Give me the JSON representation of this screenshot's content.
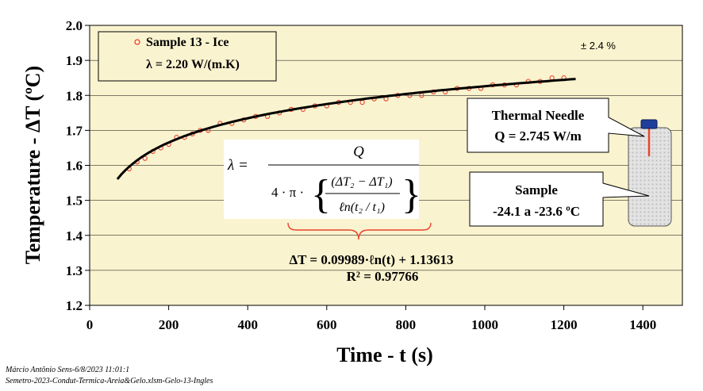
{
  "chart_data": {
    "type": "scatter",
    "title": "",
    "xlabel": "Time - t (s)",
    "ylabel": "Temperature - ΔT (ºC)",
    "xlim": [
      0,
      1500
    ],
    "ylim": [
      1.2,
      2.0
    ],
    "xticks": [
      0,
      200,
      400,
      600,
      800,
      1000,
      1200,
      1400
    ],
    "yticks": [
      "1.2",
      "1.3",
      "1.4",
      "1.5",
      "1.6",
      "1.7",
      "1.8",
      "1.9",
      "2.0"
    ],
    "grid": "horizontal",
    "series": [
      {
        "name": "Sample 13 - Ice",
        "kind": "points",
        "color": "#e8452c",
        "x": [
          100,
          120,
          140,
          160,
          180,
          200,
          220,
          240,
          260,
          280,
          300,
          330,
          360,
          390,
          420,
          450,
          480,
          510,
          540,
          570,
          600,
          630,
          660,
          690,
          720,
          750,
          780,
          810,
          840,
          870,
          900,
          930,
          960,
          990,
          1020,
          1050,
          1080,
          1110,
          1140,
          1170,
          1200
        ],
        "y": [
          1.59,
          1.61,
          1.62,
          1.64,
          1.65,
          1.66,
          1.68,
          1.68,
          1.69,
          1.7,
          1.7,
          1.72,
          1.72,
          1.73,
          1.74,
          1.74,
          1.75,
          1.76,
          1.76,
          1.77,
          1.77,
          1.78,
          1.78,
          1.78,
          1.79,
          1.79,
          1.8,
          1.8,
          1.8,
          1.81,
          1.81,
          1.82,
          1.82,
          1.82,
          1.83,
          1.83,
          1.83,
          1.84,
          1.84,
          1.85,
          1.85
        ]
      },
      {
        "name": "ΔT = 0.09989·ℓn(t) + 1.13613",
        "kind": "fit",
        "color": "#000000",
        "fit": {
          "a": 0.09989,
          "b": 1.13613,
          "x_from": 70,
          "x_to": 1230
        }
      }
    ]
  },
  "legend": {
    "marker_label": "Sample 13 - Ice",
    "lambda_text": "λ = 2.20 W/(m.K)"
  },
  "uncertainty": "± 2.4 %",
  "formula": {
    "lambda": "λ =",
    "numerator": "Q",
    "prefix": "4 · π ·",
    "inner_num": "(ΔT₂ − ΔT₁)",
    "inner_den": "ℓn(t₂ / t₁)"
  },
  "fit_equation": "ΔT = 0.09989·ℓn(t) + 1.13613",
  "r_squared": "R² = 0.97766",
  "callouts": {
    "needle_line1": "Thermal Needle",
    "needle_line2": "Q = 2.745 W/m",
    "sample_line1": "Sample",
    "sample_line2": "-24.1 a -23.6 ºC"
  },
  "footer": {
    "line1": "Márcio Antônio Sens-6/8/2023 11:01:1",
    "line2": "Semetro-2023-Condut-Termica-Areia&Gelo.xlsm-Gelo-13-Ingles"
  },
  "colors": {
    "plot_bg": "#faf3cf",
    "points": "#e8452c",
    "fit_line": "#000000",
    "brace": "#e8452c",
    "needle_cap": "#1f3f9a",
    "needle": "#e8452c",
    "container": "#dcdcdc"
  }
}
